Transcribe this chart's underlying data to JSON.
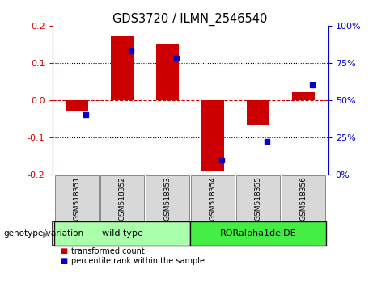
{
  "title": "GDS3720 / ILMN_2546540",
  "samples": [
    "GSM518351",
    "GSM518352",
    "GSM518353",
    "GSM518354",
    "GSM518355",
    "GSM518356"
  ],
  "red_values": [
    -0.03,
    0.172,
    0.152,
    -0.192,
    -0.068,
    0.022
  ],
  "blue_values_pct": [
    40,
    83,
    78,
    10,
    22,
    60
  ],
  "ylim_left": [
    -0.2,
    0.2
  ],
  "ylim_right": [
    0,
    100
  ],
  "yticks_left": [
    -0.2,
    -0.1,
    0.0,
    0.1,
    0.2
  ],
  "yticks_right": [
    0,
    25,
    50,
    75,
    100
  ],
  "groups": [
    {
      "label": "wild type",
      "indices": [
        0,
        1,
        2
      ],
      "color": "#AAFFAA"
    },
    {
      "label": "RORalpha1delDE",
      "indices": [
        3,
        4,
        5
      ],
      "color": "#44EE44"
    }
  ],
  "group_label": "genotype/variation",
  "legend_red": "transformed count",
  "legend_blue": "percentile rank within the sample",
  "bar_width": 0.5,
  "red_color": "#CC0000",
  "blue_color": "#0000CC",
  "zero_line_color": "#CC0000"
}
